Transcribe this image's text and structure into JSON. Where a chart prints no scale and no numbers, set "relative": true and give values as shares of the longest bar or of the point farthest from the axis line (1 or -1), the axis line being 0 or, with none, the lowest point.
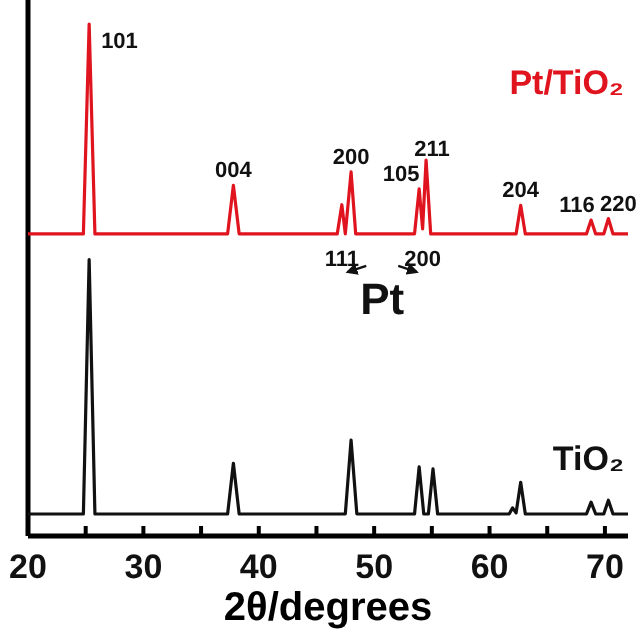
{
  "chart_data": {
    "type": "line",
    "relative": true,
    "xlabel": "2θ/degrees",
    "xlim": [
      20,
      72
    ],
    "xticks": [
      20,
      {
        "value": 25,
        "label": null
      },
      30,
      {
        "value": 35,
        "label": null
      },
      40,
      {
        "value": 45,
        "label": null
      },
      50,
      {
        "value": 55,
        "label": null
      },
      60,
      {
        "value": 65,
        "label": null
      },
      70
    ],
    "tick_labels": "x",
    "legend": false,
    "marker": "none",
    "line_style": "solid",
    "series": [
      {
        "name": "Pt/TiO₂",
        "color": "#e0141e",
        "x": [
          20,
          24.8,
          25.3,
          25.8,
          37.3,
          37.8,
          38.3,
          46.8,
          47.2,
          47.5,
          48.0,
          48.4,
          53.5,
          53.9,
          54.2,
          54.5,
          54.9,
          62.3,
          62.7,
          63.1,
          68.4,
          68.8,
          69.2,
          69.9,
          70.3,
          70.7,
          72
        ],
        "values": [
          0.59,
          0.59,
          1.0,
          0.59,
          0.59,
          0.685,
          0.59,
          0.59,
          0.647,
          0.59,
          0.711,
          0.59,
          0.59,
          0.678,
          0.6,
          0.734,
          0.59,
          0.59,
          0.646,
          0.59,
          0.59,
          0.617,
          0.59,
          0.59,
          0.62,
          0.59,
          0.59
        ]
      },
      {
        "name": "TiO₂",
        "color": "#111111",
        "x": [
          20,
          24.8,
          25.3,
          25.8,
          37.3,
          37.8,
          38.3,
          47.5,
          48.0,
          48.5,
          53.5,
          53.9,
          54.3,
          54.7,
          55.1,
          55.5,
          61.7,
          62.0,
          62.3,
          62.7,
          63.1,
          68.4,
          68.8,
          69.2,
          69.9,
          70.3,
          70.7,
          72
        ],
        "values": [
          0.043,
          0.043,
          0.54,
          0.043,
          0.043,
          0.142,
          0.043,
          0.043,
          0.1875,
          0.043,
          0.043,
          0.135,
          0.043,
          0.043,
          0.131,
          0.043,
          0.043,
          0.055,
          0.045,
          0.105,
          0.043,
          0.043,
          0.066,
          0.043,
          0.043,
          0.07,
          0.043,
          0.043
        ]
      }
    ],
    "annotations": [
      {
        "text": "101",
        "x": 25.3,
        "y": 1.0
      },
      {
        "text": "004",
        "x": 37.8,
        "y": 0.685
      },
      {
        "text": "200",
        "x": 48.0,
        "y": 0.711
      },
      {
        "text": "105",
        "x": 53.9,
        "y": 0.678
      },
      {
        "text": "211",
        "x": 54.5,
        "y": 0.734
      },
      {
        "text": "204",
        "x": 62.7,
        "y": 0.646
      },
      {
        "text": "116",
        "x": 68.8,
        "y": 0.617
      },
      {
        "text": "220",
        "x": 70.3,
        "y": 0.62
      },
      {
        "text": "111",
        "x": 47.2,
        "y": 0.59
      },
      {
        "text": "200",
        "x": 54.2,
        "y": 0.59
      },
      "Pt"
    ]
  }
}
